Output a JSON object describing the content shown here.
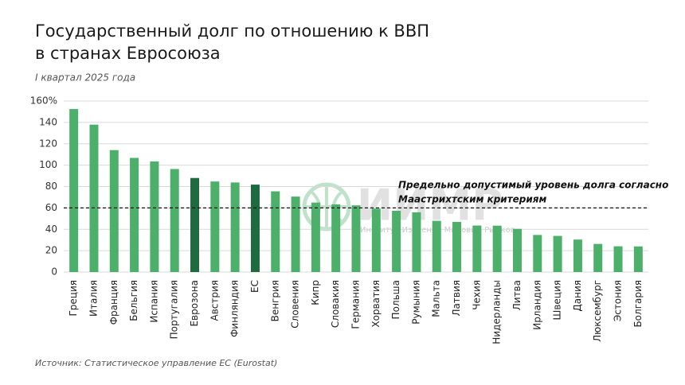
{
  "chart_data": {
    "type": "bar",
    "title": [
      "Государственный долг по отношению к ВВП",
      "в странах Евросоюза"
    ],
    "subtitle": "I квартал 2025 года",
    "source": "Источник: Статистическое управление ЕС (Eurostat)",
    "watermark": {
      "title": "ИИМР",
      "subtitle": "Институт Изучения Мировых Рынков"
    },
    "categories": [
      "Греция",
      "Италия",
      "Франция",
      "Бельгия",
      "Испания",
      "Португалия",
      "Еврозона",
      "Австрия",
      "Финляндия",
      "ЕС",
      "Венгрия",
      "Словения",
      "Кипр",
      "Словакия",
      "Германия",
      "Хорватия",
      "Польша",
      "Румыния",
      "Мальта",
      "Латвия",
      "Чехия",
      "Нидерланды",
      "Литва",
      "Ирландия",
      "Швеция",
      "Дания",
      "Люксембург",
      "Эстония",
      "Болгария"
    ],
    "values": [
      152.5,
      137.9,
      114.1,
      106.8,
      103.5,
      96.4,
      88.0,
      84.7,
      83.8,
      81.8,
      75.5,
      70.6,
      65.0,
      63.3,
      62.4,
      59.3,
      57.3,
      55.9,
      47.9,
      46.9,
      43.5,
      43.4,
      40.4,
      34.7,
      33.8,
      30.4,
      26.3,
      24.1,
      24.0
    ],
    "colors": [
      "#4caf6a",
      "#4caf6a",
      "#4caf6a",
      "#4caf6a",
      "#4caf6a",
      "#4caf6a",
      "#1d6b3e",
      "#4caf6a",
      "#4caf6a",
      "#1d6b3e",
      "#4caf6a",
      "#4caf6a",
      "#4caf6a",
      "#4caf6a",
      "#4caf6a",
      "#4caf6a",
      "#4caf6a",
      "#4caf6a",
      "#4caf6a",
      "#4caf6a",
      "#4caf6a",
      "#4caf6a",
      "#4caf6a",
      "#4caf6a",
      "#4caf6a",
      "#4caf6a",
      "#4caf6a",
      "#4caf6a",
      "#4caf6a"
    ],
    "ylim": [
      0,
      160
    ],
    "yticks": [
      0,
      20,
      40,
      60,
      80,
      100,
      120,
      140,
      {
        "value": 160,
        "label": "160%"
      }
    ],
    "grid": true,
    "reference_line": {
      "value": 60,
      "label": [
        "Предельно допустимый уровень долга согласно",
        "Маастрихтским критериям"
      ]
    }
  }
}
